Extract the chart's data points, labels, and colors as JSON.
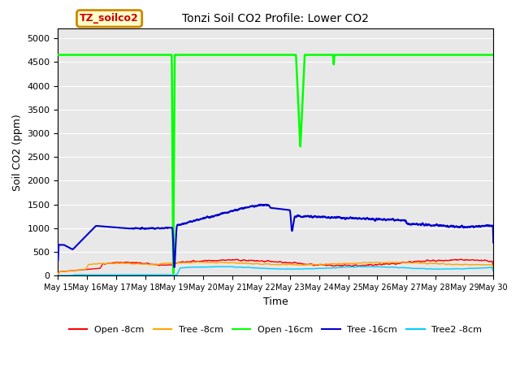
{
  "title": "Tonzi Soil CO2 Profile: Lower CO2",
  "xlabel": "Time",
  "ylabel": "Soil CO2 (ppm)",
  "ylim": [
    0,
    5200
  ],
  "yticks": [
    0,
    500,
    1000,
    1500,
    2000,
    2500,
    3000,
    3500,
    4000,
    4500,
    5000
  ],
  "xlim_days": [
    15,
    30
  ],
  "x_tick_labels": [
    "May 15",
    "May 16",
    "May 17",
    "May 18",
    "May 19",
    "May 20",
    "May 21",
    "May 22",
    "May 23",
    "May 24",
    "May 25",
    "May 26",
    "May 27",
    "May 28",
    "May 29",
    "May 30"
  ],
  "background_color": "#e8e8e8",
  "fig_background": "#ffffff",
  "legend_label_box": "TZ_soilco2",
  "legend_box_facecolor": "#ffffcc",
  "legend_box_edgecolor": "#cc8800",
  "series": [
    {
      "label": "Open -8cm",
      "color": "#ff0000"
    },
    {
      "label": "Tree -8cm",
      "color": "#ffa500"
    },
    {
      "label": "Open -16cm",
      "color": "#00ff00"
    },
    {
      "label": "Tree -16cm",
      "color": "#0000cc"
    },
    {
      "label": "Tree2 -8cm",
      "color": "#00ccff"
    }
  ]
}
